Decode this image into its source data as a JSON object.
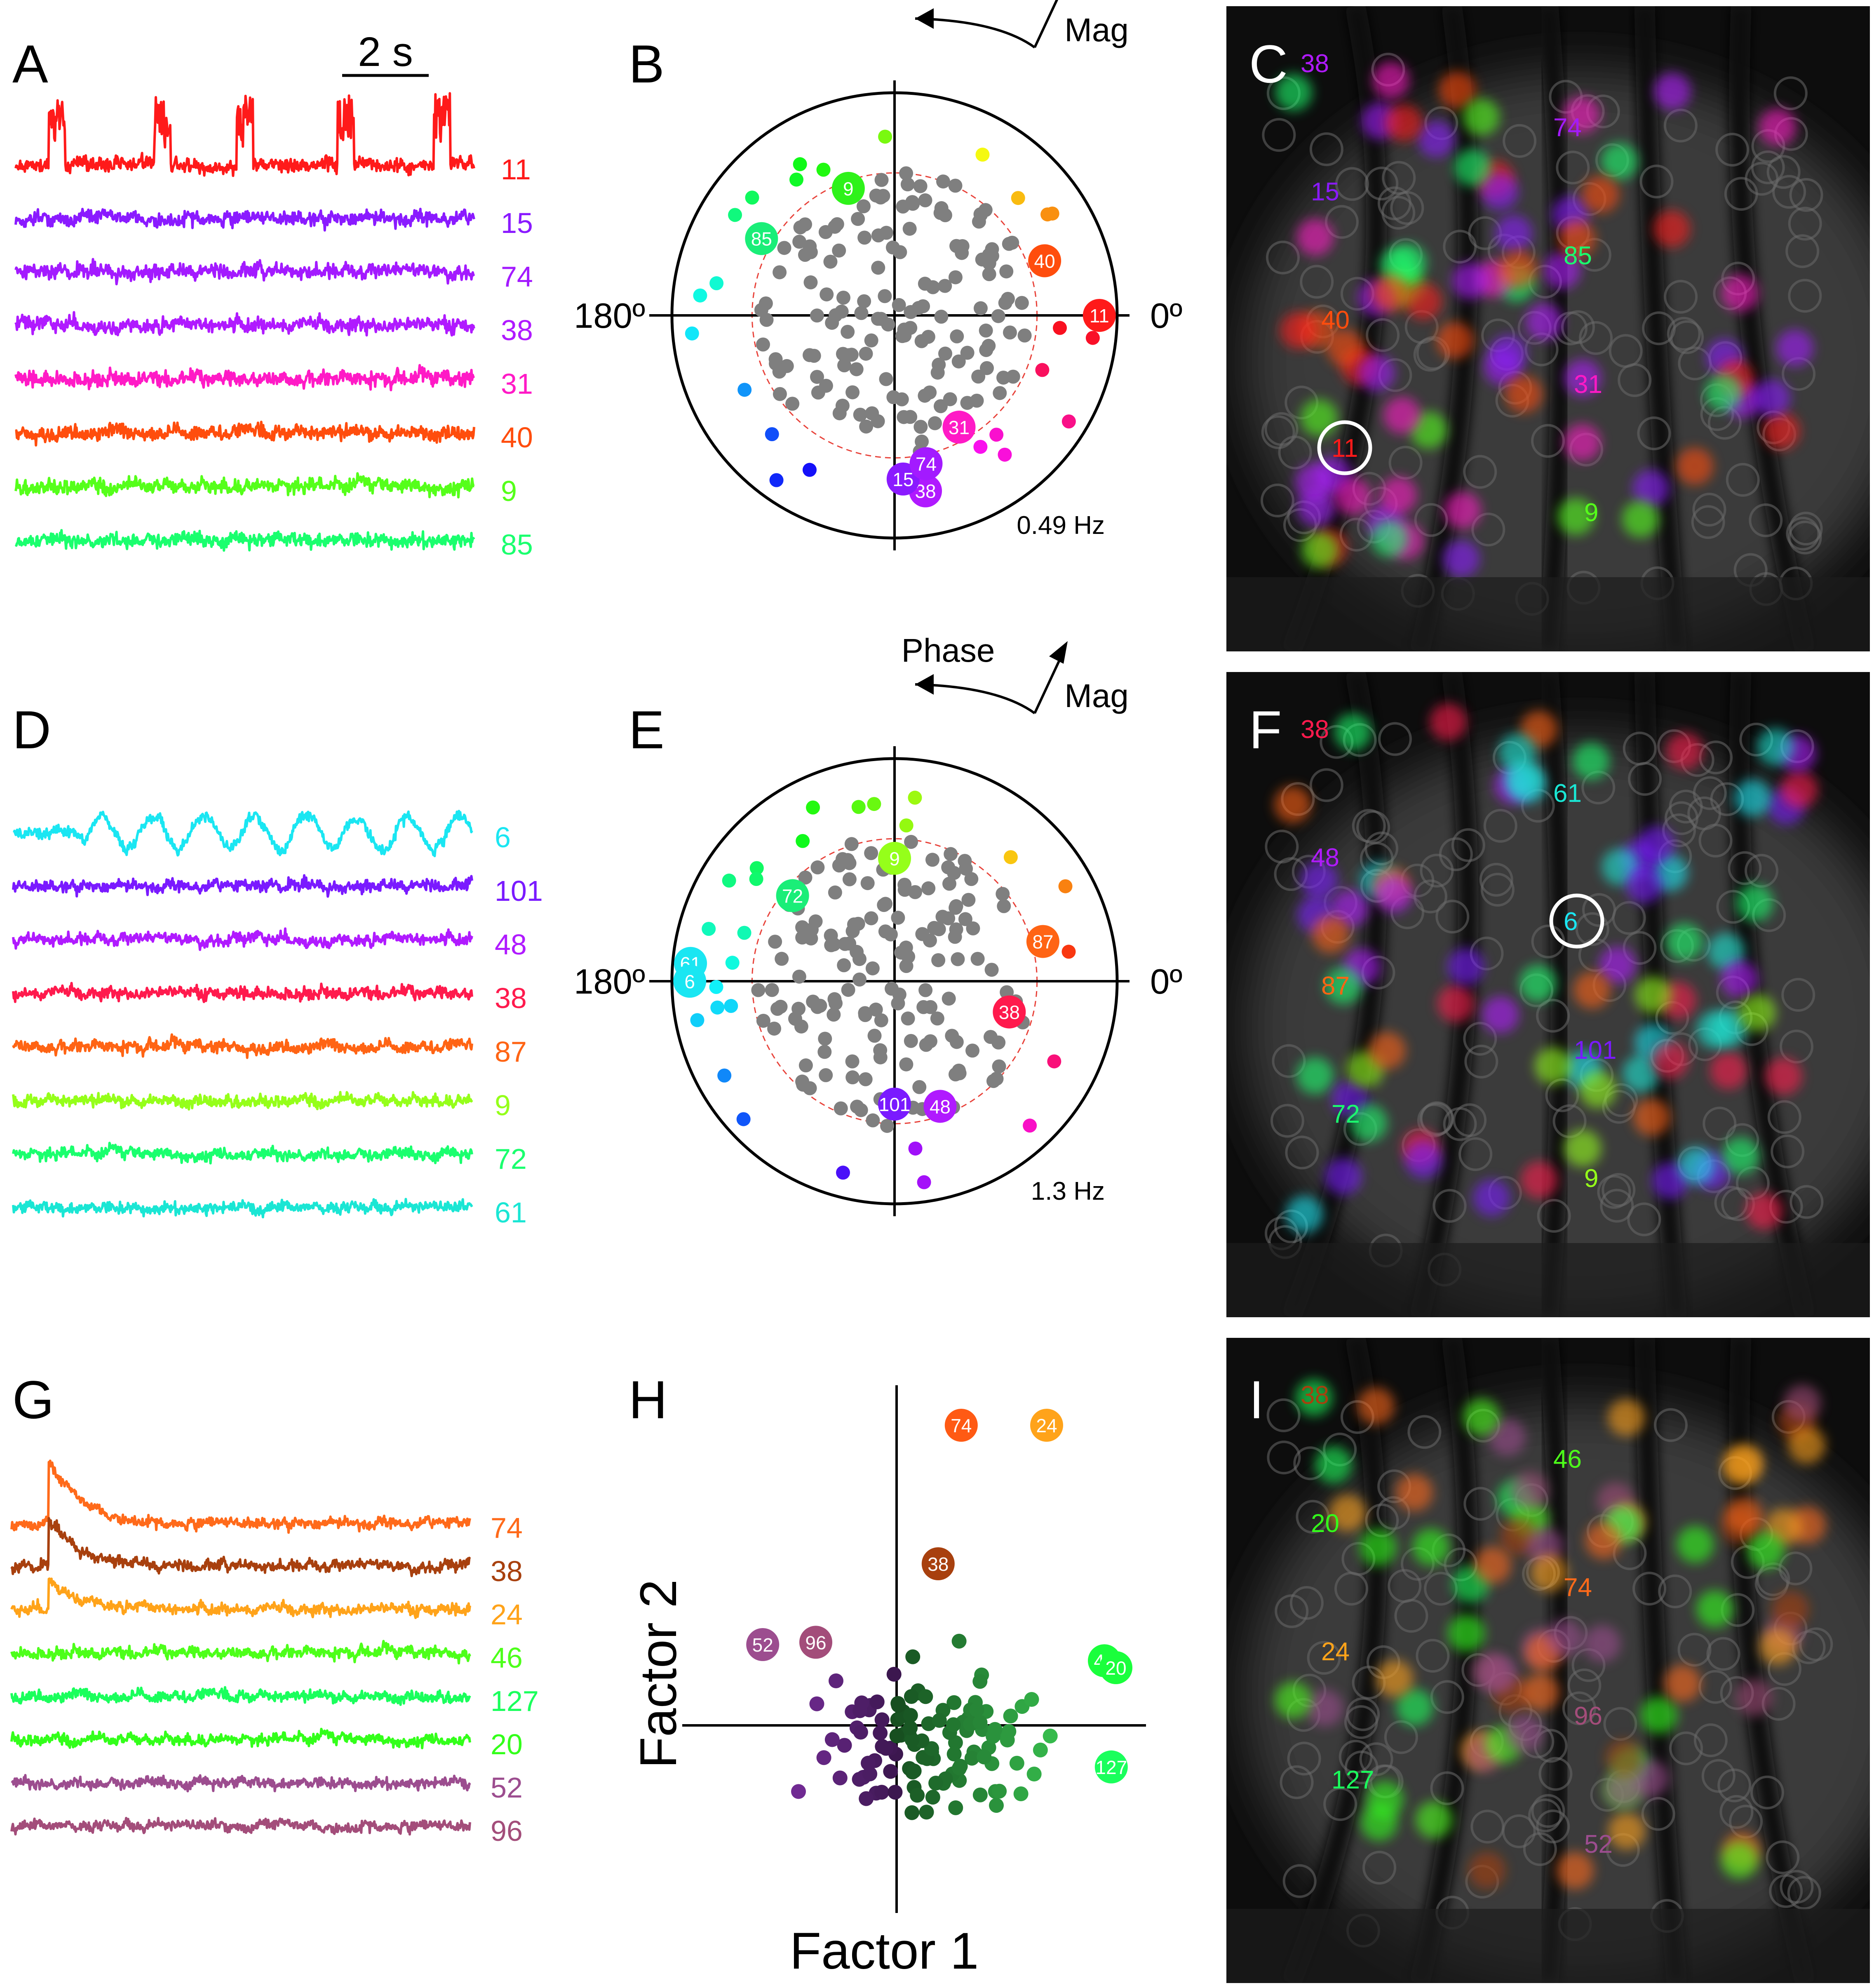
{
  "panel_letters": [
    "A",
    "B",
    "C",
    "D",
    "E",
    "F",
    "G",
    "H",
    "I"
  ],
  "scale_bar_label": "2 s",
  "polar_labels": {
    "phase": "Phase",
    "mag": "Mag",
    "deg180": "180º",
    "deg0": "0º"
  },
  "freq_B": "0.49 Hz",
  "freq_E": "1.3 Hz",
  "axis_H": {
    "xlabel": "Factor 1",
    "ylabel": "Factor 2"
  },
  "colors": {
    "gray_dot": "#7f7f7f",
    "ref_circle": "#e8423a",
    "image_bg": "#0d0d0d"
  },
  "chart_data": [
    {
      "panel": "A",
      "type": "line",
      "scale_bar": "2 s",
      "series": [
        {
          "name": "11",
          "color": "#ff1a1a",
          "bursts": true
        },
        {
          "name": "15",
          "color": "#8a1aff"
        },
        {
          "name": "74",
          "color": "#a31aff"
        },
        {
          "name": "38",
          "color": "#b01aff"
        },
        {
          "name": "31",
          "color": "#ff1ac6"
        },
        {
          "name": "40",
          "color": "#ff4d0d"
        },
        {
          "name": "9",
          "color": "#55ff1a"
        },
        {
          "name": "85",
          "color": "#1aff6e"
        }
      ]
    },
    {
      "panel": "B",
      "type": "scatter",
      "coordinate_system": "polar",
      "frequency": "0.49 Hz",
      "labeled_points": [
        {
          "label": "11",
          "angle_deg": 0,
          "radius": 1.0,
          "color": "#ff1a1a"
        },
        {
          "label": "40",
          "angle_deg": 20,
          "radius": 0.78,
          "color": "#ff4d0d"
        },
        {
          "label": "9",
          "angle_deg": 110,
          "radius": 0.66,
          "color": "#2ef21a"
        },
        {
          "label": "85",
          "angle_deg": 150,
          "radius": 0.75,
          "color": "#1aee78"
        },
        {
          "label": "31",
          "angle_deg": 300,
          "radius": 0.63,
          "color": "#ff1ac6"
        },
        {
          "label": "38",
          "angle_deg": 280,
          "radius": 0.87,
          "color": "#b01aff"
        },
        {
          "label": "15",
          "angle_deg": 273,
          "radius": 0.8,
          "color": "#8a1aff"
        },
        {
          "label": "74",
          "angle_deg": 282,
          "radius": 0.74,
          "color": "#a31aff"
        }
      ]
    },
    {
      "panel": "D",
      "type": "line",
      "series": [
        {
          "name": "6",
          "color": "#1ae6f2"
        },
        {
          "name": "101",
          "color": "#7a1aff"
        },
        {
          "name": "48",
          "color": "#b01aff"
        },
        {
          "name": "38",
          "color": "#ff1a4d"
        },
        {
          "name": "87",
          "color": "#ff6414"
        },
        {
          "name": "9",
          "color": "#95ff1a"
        },
        {
          "name": "72",
          "color": "#1aff6e"
        },
        {
          "name": "61",
          "color": "#1ae6d4"
        }
      ]
    },
    {
      "panel": "E",
      "type": "scatter",
      "coordinate_system": "polar",
      "frequency": "1.3 Hz",
      "labeled_points": [
        {
          "label": "9",
          "angle_deg": 90,
          "radius": 0.6,
          "color": "#95ff1a"
        },
        {
          "label": "72",
          "angle_deg": 140,
          "radius": 0.65,
          "color": "#1aee78"
        },
        {
          "label": "61",
          "angle_deg": 175,
          "radius": 1.0,
          "color": "#1ae6f2"
        },
        {
          "label": "6",
          "angle_deg": 180,
          "radius": 1.0,
          "color": "#1ae6f2"
        },
        {
          "label": "87",
          "angle_deg": 15,
          "radius": 0.75,
          "color": "#ff6414"
        },
        {
          "label": "38",
          "angle_deg": 345,
          "radius": 0.58,
          "color": "#ff1a4d"
        },
        {
          "label": "101",
          "angle_deg": 270,
          "radius": 0.6,
          "color": "#7a1aff"
        },
        {
          "label": "48",
          "angle_deg": 290,
          "radius": 0.65,
          "color": "#b01aff"
        }
      ]
    },
    {
      "panel": "G",
      "type": "line",
      "series": [
        {
          "name": "74",
          "color": "#ff6a1a"
        },
        {
          "name": "38",
          "color": "#a8400e"
        },
        {
          "name": "24",
          "color": "#ffa31a"
        },
        {
          "name": "46",
          "color": "#4dff1a"
        },
        {
          "name": "127",
          "color": "#1aff5c"
        },
        {
          "name": "20",
          "color": "#33ff1a"
        },
        {
          "name": "52",
          "color": "#9c4d8f"
        },
        {
          "name": "96",
          "color": "#a34d7a"
        }
      ]
    },
    {
      "panel": "H",
      "type": "scatter",
      "xlabel": "Factor 1",
      "ylabel": "Factor 2",
      "labeled_points": [
        {
          "label": "74",
          "x": 0.28,
          "y": 1.3,
          "color": "#ff5a14"
        },
        {
          "label": "24",
          "x": 0.65,
          "y": 1.3,
          "color": "#ffa31a"
        },
        {
          "label": "38",
          "x": 0.18,
          "y": 0.7,
          "color": "#a8400e"
        },
        {
          "label": "52",
          "x": -0.58,
          "y": 0.35,
          "color": "#9c4d8f"
        },
        {
          "label": "96",
          "x": -0.35,
          "y": 0.36,
          "color": "#a34d7a"
        },
        {
          "label": "46",
          "x": 0.9,
          "y": 0.28,
          "color": "#1aff3c"
        },
        {
          "label": "20",
          "x": 0.95,
          "y": 0.25,
          "color": "#1aff3c"
        },
        {
          "label": "127",
          "x": 0.93,
          "y": -0.18,
          "color": "#1aff5c"
        }
      ]
    },
    {
      "panel": "C",
      "type": "image",
      "labels": [
        {
          "text": "38",
          "color": "#b01aff"
        },
        {
          "text": "74",
          "color": "#a31aff"
        },
        {
          "text": "15",
          "color": "#8a1aff"
        },
        {
          "text": "85",
          "color": "#1aff6e"
        },
        {
          "text": "40",
          "color": "#ff4d0d"
        },
        {
          "text": "31",
          "color": "#ff1ac6"
        },
        {
          "text": "11",
          "color": "#ff1a1a"
        },
        {
          "text": "9",
          "color": "#55ff1a"
        }
      ]
    },
    {
      "panel": "F",
      "type": "image",
      "labels": [
        {
          "text": "38",
          "color": "#ff1a4d"
        },
        {
          "text": "61",
          "color": "#1ae6d4"
        },
        {
          "text": "48",
          "color": "#b01aff"
        },
        {
          "text": "6",
          "color": "#1ae6f2"
        },
        {
          "text": "87",
          "color": "#ff6414"
        },
        {
          "text": "101",
          "color": "#7a1aff"
        },
        {
          "text": "72",
          "color": "#1aff6e"
        },
        {
          "text": "9",
          "color": "#95ff1a"
        }
      ]
    },
    {
      "panel": "I",
      "type": "image",
      "labels": [
        {
          "text": "38",
          "color": "#a8400e"
        },
        {
          "text": "46",
          "color": "#4dff1a"
        },
        {
          "text": "20",
          "color": "#33ff1a"
        },
        {
          "text": "74",
          "color": "#ff6a1a"
        },
        {
          "text": "24",
          "color": "#ffa31a"
        },
        {
          "text": "96",
          "color": "#a34d7a"
        },
        {
          "text": "127",
          "color": "#1aff5c"
        },
        {
          "text": "52",
          "color": "#9c4d8f"
        }
      ]
    }
  ]
}
